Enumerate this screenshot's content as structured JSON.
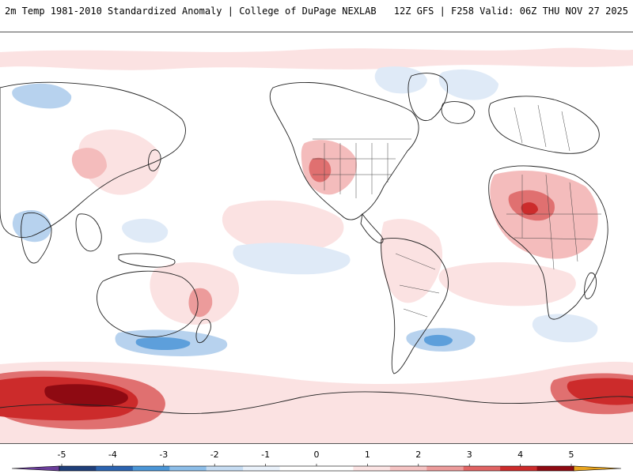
{
  "header": {
    "title_left": "2m Temp 1981-2010 Standardized Anomaly | College of DuPage NEXLAB",
    "title_right": "12Z GFS | F258 Valid: 06Z THU NOV 27 2025"
  },
  "colorbar": {
    "labels": [
      "-5",
      "-4",
      "-3",
      "-2",
      "-1",
      "0",
      "1",
      "2",
      "3",
      "4",
      "5"
    ],
    "colors": [
      "#6a3d9a",
      "#1f3f7a",
      "#2b63b0",
      "#4a95d6",
      "#8cbde8",
      "#c6dcf2",
      "#e9f1fa",
      "#ffffff",
      "#ffffff",
      "#fbe3e3",
      "#f5c3c3",
      "#ec9b9b",
      "#e06363",
      "#cc2b2b",
      "#8e0a12",
      "#e8a41e"
    ]
  },
  "map": {
    "ocean_color": "#ffffff",
    "coast_color": "#222222",
    "warm_light": "#fbe2e2",
    "warm_mid": "#f4bcbc",
    "warm_strong": "#e07070",
    "warm_intense": "#cc2b2b",
    "warm_extreme": "#8e0a12",
    "cool_light": "#dfeaf7",
    "cool_mid": "#b7d2ee",
    "cool_strong": "#5d9fdb"
  }
}
